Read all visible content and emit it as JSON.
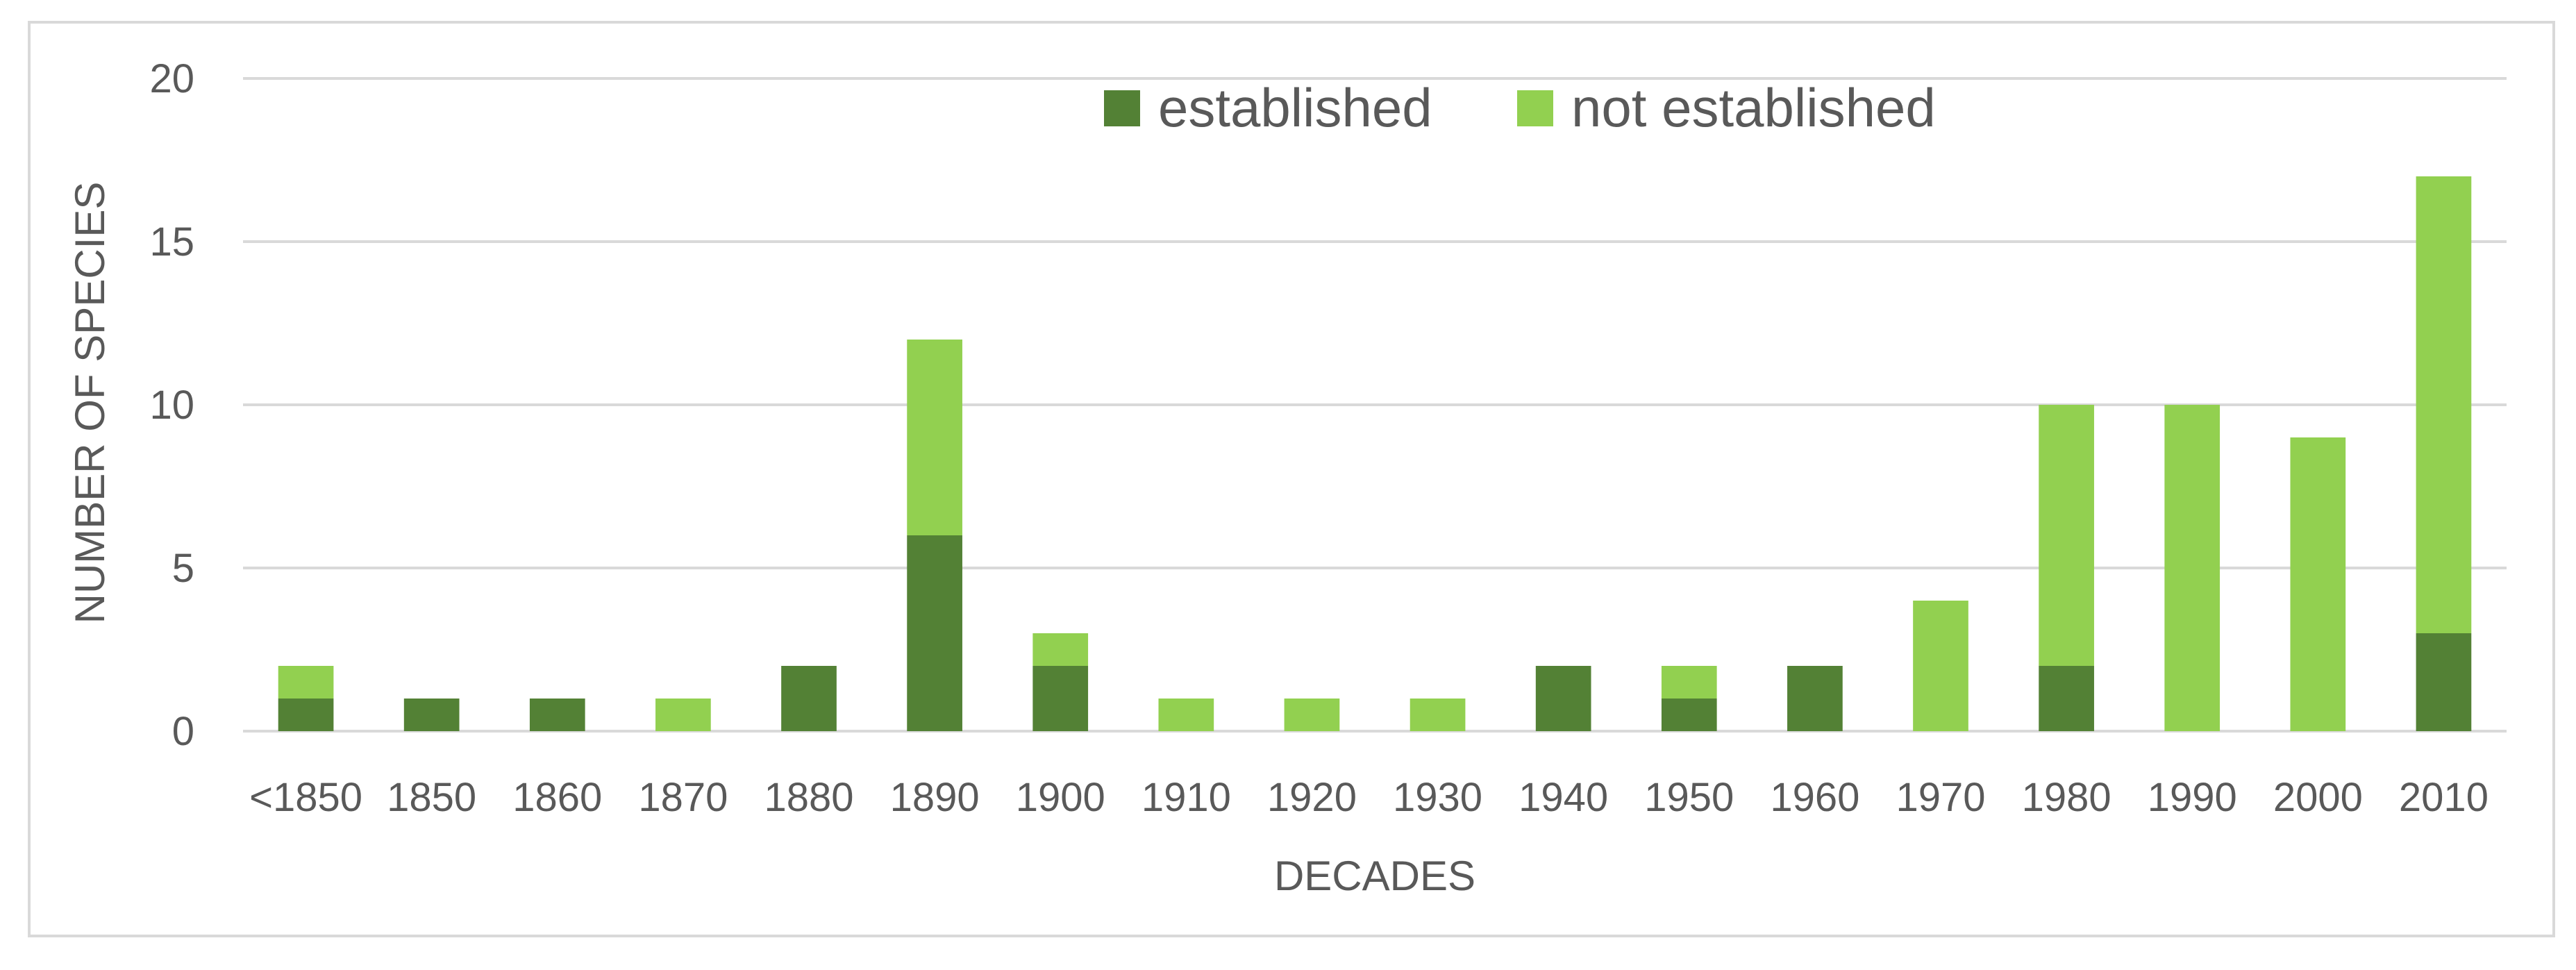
{
  "chart_data": {
    "type": "bar",
    "stacked": true,
    "title": "",
    "xlabel": "DECADES",
    "ylabel": "NUMBER OF SPECIES",
    "ylim": [
      0,
      20
    ],
    "yticks": [
      0,
      5,
      10,
      15,
      20
    ],
    "grid": true,
    "legend_position": "top-center",
    "categories": [
      "<1850",
      "1850",
      "1860",
      "1870",
      "1880",
      "1890",
      "1900",
      "1910",
      "1920",
      "1930",
      "1940",
      "1950",
      "1960",
      "1970",
      "1980",
      "1990",
      "2000",
      "2010"
    ],
    "series": [
      {
        "name": "established",
        "color": "#538135",
        "values": [
          1,
          1,
          1,
          0,
          2,
          6,
          2,
          0,
          0,
          0,
          2,
          1,
          2,
          0,
          2,
          0,
          0,
          3
        ]
      },
      {
        "name": "not established",
        "color": "#92d050",
        "values": [
          1,
          0,
          0,
          1,
          0,
          6,
          1,
          1,
          1,
          1,
          0,
          1,
          0,
          4,
          8,
          10,
          9,
          14
        ]
      }
    ]
  }
}
